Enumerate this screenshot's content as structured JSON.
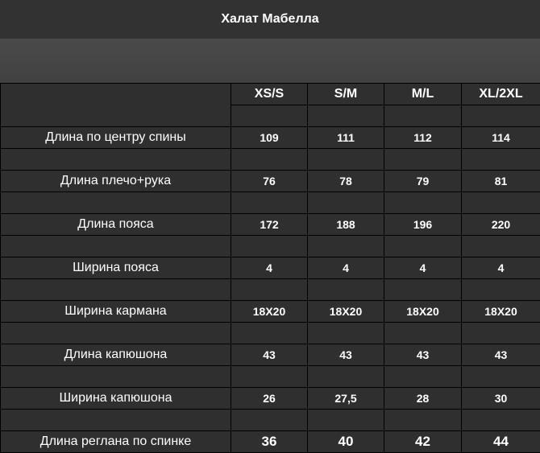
{
  "title": "Халат Мабелла",
  "table": {
    "sizes": [
      "XS/S",
      "S/M",
      "M/L",
      "XL/2XL"
    ],
    "rows": [
      {
        "label": "Длина по центру спины",
        "values": [
          "109",
          "111",
          "112",
          "114"
        ]
      },
      {
        "label": "Длина плечо+рука",
        "values": [
          "76",
          "78",
          "79",
          "81"
        ]
      },
      {
        "label": "Длина пояса",
        "values": [
          "172",
          "188",
          "196",
          "220"
        ]
      },
      {
        "label": "Ширина пояса",
        "values": [
          "4",
          "4",
          "4",
          "4"
        ]
      },
      {
        "label": "Ширина кармана",
        "values": [
          "18X20",
          "18X20",
          "18X20",
          "18X20"
        ]
      },
      {
        "label": "Длина капюшона",
        "values": [
          "43",
          "43",
          "43",
          "43"
        ]
      },
      {
        "label": "Ширина капюшона",
        "values": [
          "26",
          "27,5",
          "28",
          "30"
        ]
      },
      {
        "label": "Длина реглана по спинке",
        "values": [
          "36",
          "40",
          "42",
          "44"
        ]
      }
    ]
  }
}
